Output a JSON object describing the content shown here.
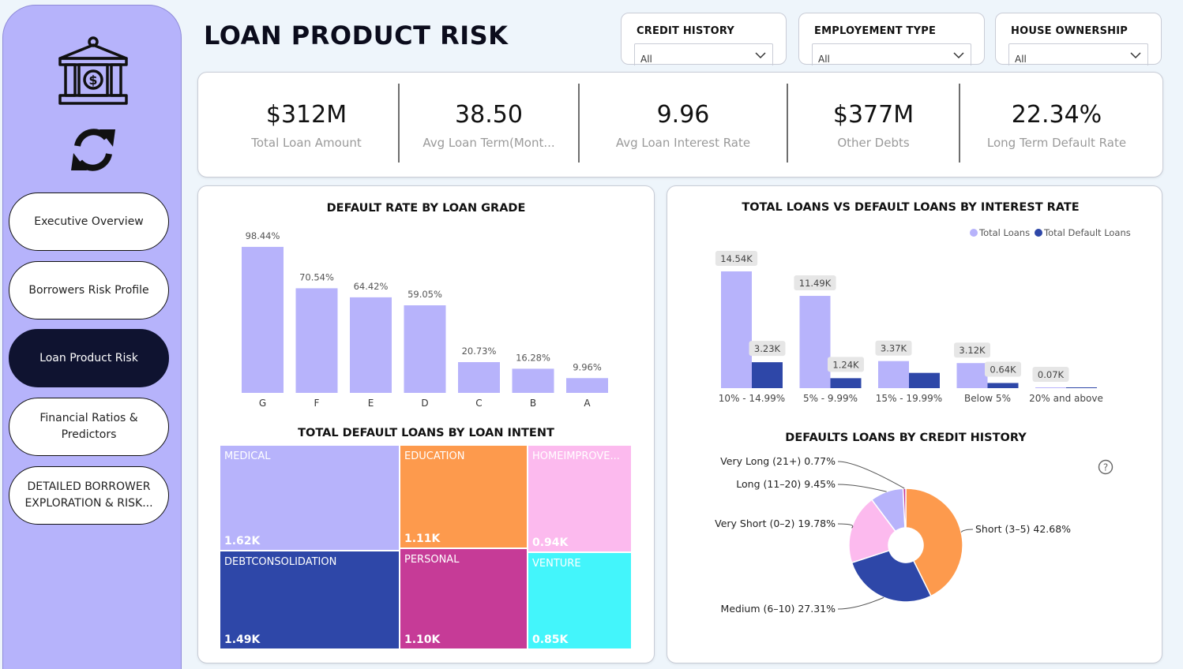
{
  "page": {
    "title": "LOAN PRODUCT RISK"
  },
  "sidebar": {
    "items": [
      {
        "label": "Executive Overview",
        "active": false
      },
      {
        "label": "Borrowers Risk Profile",
        "active": false
      },
      {
        "label": "Loan Product Risk",
        "active": true
      },
      {
        "label": "Financial Ratios & Predictors",
        "active": false
      },
      {
        "label": "DETAILED BORROWER EXPLORATION & RISK...",
        "active": false
      }
    ]
  },
  "filters": [
    {
      "label": "CREDIT HISTORY",
      "value": "All"
    },
    {
      "label": "EMPLOYEMENT TYPE",
      "value": "All"
    },
    {
      "label": "HOUSE OWNERSHIP",
      "value": "All"
    }
  ],
  "kpis": [
    {
      "value": "$312M",
      "label": "Total Loan Amount"
    },
    {
      "value": "38.50",
      "label": "Avg Loan Term(Mont..."
    },
    {
      "value": "9.96",
      "label": "Avg Loan Interest Rate"
    },
    {
      "value": "$377M",
      "label": "Other Debts"
    },
    {
      "value": "22.34%",
      "label": "Long Term Default Rate"
    }
  ],
  "colors": {
    "lavender": "#b7b3fb",
    "navy": "#2e47a8",
    "orange": "#fd9a4d",
    "pink": "#fcbaee",
    "magenta": "#c63b97",
    "cyan": "#43f5fb",
    "nav_active": "#0f1330",
    "sidebar": "#b6b3fb"
  },
  "chart_data": [
    {
      "type": "bar",
      "title": "DEFAULT RATE BY LOAN GRADE",
      "categories": [
        "G",
        "F",
        "E",
        "D",
        "C",
        "B",
        "A"
      ],
      "values": [
        98.44,
        70.54,
        64.42,
        59.05,
        20.73,
        16.28,
        9.96
      ],
      "labels": [
        "98.44%",
        "70.54%",
        "64.42%",
        "59.05%",
        "20.73%",
        "16.28%",
        "9.96%"
      ],
      "ylim": [
        0,
        100
      ]
    },
    {
      "type": "bar",
      "title": "TOTAL LOANS VS DEFAULT LOANS BY INTEREST RATE",
      "categories": [
        "10% - 14.99%",
        "5% - 9.99%",
        "15% - 19.99%",
        "Below 5%",
        "20% and above"
      ],
      "series": [
        {
          "name": "Total Loans",
          "values": [
            14.54,
            11.49,
            3.37,
            3.12,
            0.07
          ],
          "labels": [
            "14.54K",
            "11.49K",
            "3.37K",
            "3.12K",
            "0.07K"
          ]
        },
        {
          "name": "Total Default Loans",
          "values": [
            3.23,
            1.24,
            1.9,
            0.64,
            0.03
          ],
          "labels": [
            "3.23K",
            "1.24K",
            "",
            "0.64K",
            ""
          ]
        }
      ],
      "legend": "top-right"
    },
    {
      "type": "treemap",
      "title": "TOTAL DEFAULT LOANS BY LOAN INTENT",
      "items": [
        {
          "name": "MEDICAL",
          "value": 1.62,
          "label": "1.62K"
        },
        {
          "name": "DEBTCONSOLIDATION",
          "value": 1.49,
          "label": "1.49K"
        },
        {
          "name": "EDUCATION",
          "value": 1.11,
          "label": "1.11K"
        },
        {
          "name": "PERSONAL",
          "value": 1.1,
          "label": "1.10K"
        },
        {
          "name": "HOMEIMPROVE...",
          "value": 0.94,
          "label": "0.94K"
        },
        {
          "name": "VENTURE",
          "value": 0.85,
          "label": "0.85K"
        }
      ]
    },
    {
      "type": "pie",
      "title": "DEFAULTS LOANS BY CREDIT HISTORY",
      "slices": [
        {
          "label": "Short (3–5) 42.68%",
          "value": 42.68
        },
        {
          "label": "Medium (6–10) 27.31%",
          "value": 27.31
        },
        {
          "label": "Very Short (0–2) 19.78%",
          "value": 19.78
        },
        {
          "label": "Long (11–20) 9.45%",
          "value": 9.45
        },
        {
          "label": "Very Long (21+) 0.77%",
          "value": 0.77
        }
      ]
    }
  ]
}
